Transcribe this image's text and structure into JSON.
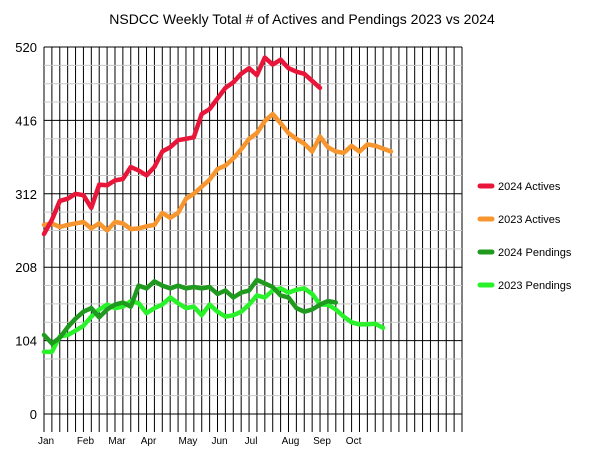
{
  "chart_data": {
    "type": "line",
    "title": "NSDCC Weekly Total # of Actives and Pendings 2023 vs 2024",
    "xlabel": "",
    "ylabel": "",
    "ylim": [
      0,
      520
    ],
    "y_ticks": [
      0,
      104,
      208,
      312,
      416,
      520
    ],
    "x_weeks": 53,
    "x_tick_labels": [
      {
        "label": "Jan",
        "week": 1
      },
      {
        "label": "Feb",
        "week": 6
      },
      {
        "label": "Mar",
        "week": 10
      },
      {
        "label": "Apr",
        "week": 14
      },
      {
        "label": "May",
        "week": 19
      },
      {
        "label": "Jun",
        "week": 23
      },
      {
        "label": "Jul",
        "week": 27
      },
      {
        "label": "Aug",
        "week": 32
      },
      {
        "label": "Sep",
        "week": 36
      },
      {
        "label": "Oct",
        "week": 40
      }
    ],
    "grid": true,
    "legend_position": "right",
    "series": [
      {
        "name": "2024 Actives",
        "color": "#e8173a",
        "values": [
          255,
          275,
          302,
          305,
          312,
          310,
          292,
          325,
          324,
          331,
          333,
          350,
          345,
          338,
          350,
          372,
          378,
          388,
          390,
          392,
          425,
          432,
          447,
          462,
          470,
          482,
          490,
          480,
          505,
          495,
          502,
          490,
          485,
          482,
          472,
          462
        ]
      },
      {
        "name": "2023 Actives",
        "color": "#f7952e",
        "values": [
          268,
          270,
          265,
          268,
          270,
          272,
          263,
          270,
          260,
          272,
          270,
          262,
          263,
          266,
          268,
          285,
          278,
          285,
          305,
          312,
          322,
          332,
          347,
          352,
          362,
          375,
          390,
          398,
          415,
          425,
          412,
          398,
          390,
          383,
          372,
          393,
          378,
          372,
          370,
          380,
          372,
          382,
          380,
          376,
          372
        ]
      },
      {
        "name": "2024 Pendings",
        "color": "#1f9a1f",
        "values": [
          112,
          100,
          108,
          123,
          135,
          145,
          150,
          137,
          148,
          155,
          158,
          152,
          182,
          178,
          188,
          182,
          178,
          182,
          178,
          180,
          178,
          180,
          170,
          175,
          165,
          172,
          175,
          190,
          185,
          180,
          168,
          165,
          150,
          145,
          148,
          155,
          160,
          158
        ]
      },
      {
        "name": "2023 Pendings",
        "color": "#2af22a",
        "values": [
          88,
          88,
          110,
          112,
          118,
          125,
          138,
          148,
          155,
          150,
          152,
          160,
          157,
          143,
          150,
          155,
          165,
          157,
          150,
          152,
          140,
          155,
          145,
          138,
          140,
          145,
          155,
          168,
          165,
          175,
          178,
          172,
          176,
          178,
          170,
          155,
          155,
          148,
          138,
          130,
          127,
          127,
          128,
          122
        ]
      }
    ]
  }
}
